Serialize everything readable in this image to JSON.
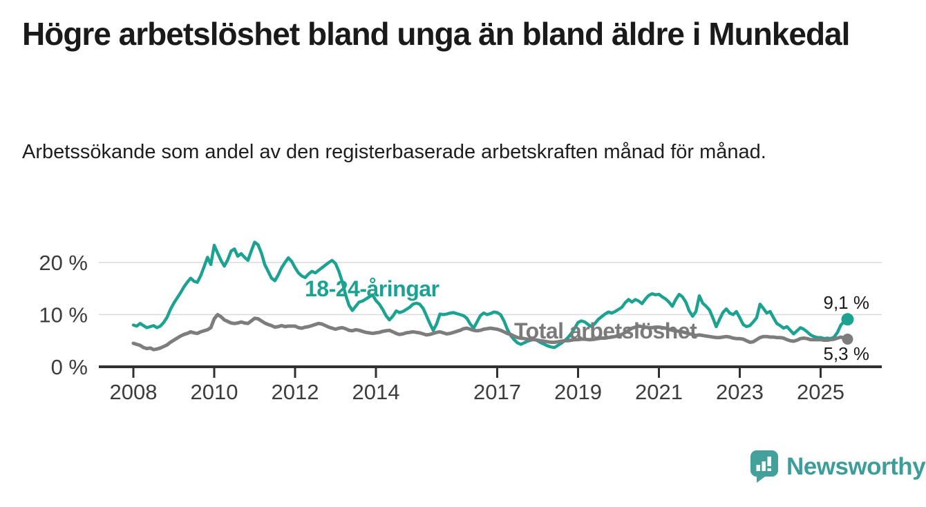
{
  "header": {
    "title": "Högre arbetslöshet bland unga än bland äldre i Munkedal",
    "subtitle": "Arbetssökande som andel av den registerbaserade arbetskraften månad för månad."
  },
  "branding": {
    "wordmark": "Newsworthy",
    "logo_icon": "speech-bubble-bar-chart-icon",
    "brand_color": "#3D9D99"
  },
  "chart_data": {
    "type": "line",
    "x_unit": "month",
    "x_start": "2008-01",
    "x_end": "2025-09",
    "ylim": [
      0,
      25
    ],
    "grid": "horizontal",
    "y_ticks": [
      {
        "value": 0,
        "label": "0 %"
      },
      {
        "value": 10,
        "label": "10 %"
      },
      {
        "value": 20,
        "label": "20 %"
      }
    ],
    "x_ticks": [
      {
        "year": 2008,
        "label": "2008"
      },
      {
        "year": 2010,
        "label": "2010"
      },
      {
        "year": 2012,
        "label": "2012"
      },
      {
        "year": 2014,
        "label": "2014"
      },
      {
        "year": 2017,
        "label": "2017"
      },
      {
        "year": 2019,
        "label": "2019"
      },
      {
        "year": 2021,
        "label": "2021"
      },
      {
        "year": 2023,
        "label": "2023"
      },
      {
        "year": 2025,
        "label": "2025"
      }
    ],
    "series": [
      {
        "name": "18-24-åringar",
        "color": "#1CA291",
        "line_width": 4.5,
        "end_value": 9.1,
        "end_label": "9,1 %",
        "values": [
          8.0,
          7.8,
          8.3,
          7.9,
          7.5,
          7.7,
          7.9,
          7.5,
          7.8,
          8.5,
          9.5,
          11.0,
          12.2,
          13.2,
          14.2,
          15.3,
          16.2,
          17.0,
          16.4,
          16.2,
          17.5,
          19.2,
          21.0,
          19.6,
          23.3,
          21.8,
          20.4,
          19.3,
          20.5,
          22.2,
          22.6,
          21.2,
          21.7,
          21.0,
          20.4,
          22.2,
          23.9,
          23.4,
          21.8,
          19.6,
          18.3,
          17.0,
          16.5,
          17.6,
          19.0,
          20.0,
          20.9,
          20.2,
          19.0,
          18.0,
          17.4,
          17.1,
          17.8,
          18.3,
          18.0,
          18.5,
          19.0,
          19.5,
          20.0,
          20.4,
          19.8,
          18.3,
          16.3,
          13.8,
          11.8,
          10.8,
          11.6,
          12.4,
          12.6,
          13.0,
          13.4,
          13.8,
          12.7,
          12.0,
          11.0,
          9.8,
          9.0,
          9.7,
          10.7,
          10.4,
          10.6,
          11.0,
          11.4,
          12.0,
          12.2,
          12.0,
          11.2,
          9.8,
          8.3,
          7.0,
          8.2,
          10.1,
          10.0,
          10.1,
          10.3,
          10.4,
          10.2,
          10.0,
          9.8,
          9.3,
          8.2,
          7.4,
          8.6,
          9.8,
          10.3,
          10.0,
          10.2,
          10.5,
          10.4,
          10.0,
          8.8,
          7.2,
          6.0,
          5.2,
          4.6,
          4.3,
          4.6,
          4.9,
          5.1,
          5.3,
          5.0,
          4.6,
          4.3,
          4.0,
          3.8,
          3.7,
          4.1,
          4.5,
          5.0,
          5.6,
          6.4,
          7.4,
          8.5,
          8.8,
          8.6,
          8.1,
          7.7,
          8.3,
          9.1,
          9.6,
          10.1,
          10.5,
          10.3,
          10.6,
          11.0,
          11.4,
          12.3,
          12.9,
          12.4,
          12.9,
          12.6,
          12.1,
          13.0,
          13.7,
          14.0,
          13.8,
          13.9,
          13.4,
          13.0,
          12.4,
          11.6,
          12.9,
          13.9,
          13.4,
          12.4,
          10.7,
          9.7,
          10.6,
          13.6,
          12.2,
          11.6,
          10.9,
          9.4,
          7.7,
          9.1,
          10.4,
          11.1,
          10.3,
          10.0,
          10.6,
          9.4,
          8.1,
          7.7,
          7.9,
          8.6,
          9.4,
          12.0,
          11.2,
          10.3,
          10.6,
          9.4,
          8.3,
          7.9,
          7.4,
          7.7,
          7.0,
          6.3,
          6.9,
          7.5,
          7.2,
          6.7,
          6.1,
          5.8,
          5.6,
          5.6,
          5.4,
          5.5,
          5.4,
          5.7,
          6.6,
          8.0,
          8.7,
          9.1
        ]
      },
      {
        "name": "Total arbetslöshet",
        "color": "#7D7D7D",
        "line_width": 5,
        "end_value": 5.3,
        "end_label": "5,3 %",
        "values": [
          4.5,
          4.3,
          4.1,
          3.7,
          3.5,
          3.6,
          3.3,
          3.4,
          3.6,
          3.9,
          4.2,
          4.7,
          5.1,
          5.5,
          5.9,
          6.2,
          6.4,
          6.7,
          6.5,
          6.4,
          6.7,
          6.9,
          7.1,
          7.5,
          9.2,
          10.0,
          9.6,
          9.0,
          8.7,
          8.4,
          8.3,
          8.4,
          8.6,
          8.4,
          8.3,
          8.8,
          9.3,
          9.2,
          8.8,
          8.4,
          8.1,
          7.9,
          7.6,
          7.7,
          7.9,
          7.7,
          7.8,
          7.8,
          7.8,
          7.5,
          7.4,
          7.6,
          7.7,
          7.9,
          8.1,
          8.3,
          8.2,
          7.9,
          7.6,
          7.4,
          7.2,
          7.4,
          7.5,
          7.3,
          7.0,
          6.9,
          7.1,
          7.0,
          6.8,
          6.6,
          6.5,
          6.4,
          6.5,
          6.6,
          6.8,
          6.9,
          7.0,
          6.7,
          6.4,
          6.2,
          6.3,
          6.5,
          6.6,
          6.7,
          6.6,
          6.5,
          6.3,
          6.1,
          6.2,
          6.4,
          6.6,
          6.7,
          6.5,
          6.3,
          6.4,
          6.6,
          6.8,
          7.0,
          7.3,
          7.4,
          7.2,
          7.0,
          6.9,
          7.0,
          7.2,
          7.3,
          7.4,
          7.3,
          7.2,
          7.0,
          6.7,
          6.4,
          6.2,
          5.9,
          5.6,
          5.5,
          5.4,
          5.3,
          5.2,
          5.2,
          5.1,
          5.0,
          4.9,
          4.8,
          4.7,
          4.7,
          4.8,
          4.9,
          5.0,
          5.0,
          5.1,
          5.2,
          5.2,
          5.3,
          5.3,
          5.2,
          5.2,
          5.3,
          5.4,
          5.5,
          5.5,
          5.6,
          5.7,
          5.8,
          6.0,
          6.2,
          6.6,
          7.0,
          7.4,
          7.6,
          7.8,
          7.7,
          7.6,
          7.5,
          7.5,
          7.6,
          7.6,
          7.5,
          7.4,
          7.2,
          7.0,
          6.9,
          6.8,
          6.7,
          6.5,
          6.3,
          6.2,
          6.0,
          6.1,
          6.0,
          5.9,
          5.8,
          5.7,
          5.6,
          5.6,
          5.7,
          5.8,
          5.7,
          5.5,
          5.4,
          5.4,
          5.3,
          5.0,
          4.7,
          4.8,
          5.2,
          5.6,
          5.8,
          5.8,
          5.7,
          5.7,
          5.6,
          5.6,
          5.5,
          5.2,
          5.0,
          4.9,
          5.1,
          5.4,
          5.5,
          5.4,
          5.2,
          5.2,
          5.2,
          5.2,
          5.1,
          5.1,
          5.2,
          5.3,
          5.5,
          5.7,
          5.5,
          5.3
        ]
      }
    ],
    "style": {
      "grid_color": "#d9d9d9",
      "axis_color": "#303030",
      "tick_label_color": "#3c3c3c"
    }
  }
}
